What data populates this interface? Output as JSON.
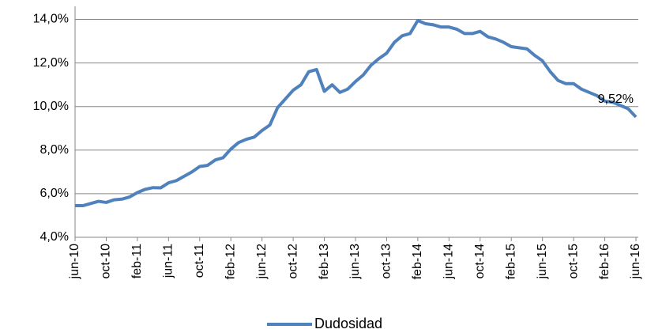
{
  "chart_data": {
    "type": "line",
    "categories": [
      "jun-10",
      null,
      null,
      null,
      "oct-10",
      null,
      null,
      null,
      "feb-11",
      null,
      null,
      null,
      "jun-11",
      null,
      null,
      null,
      "oct-11",
      null,
      null,
      null,
      "feb-12",
      null,
      null,
      null,
      "jun-12",
      null,
      null,
      null,
      "oct-12",
      null,
      null,
      null,
      "feb-13",
      null,
      null,
      null,
      "jun-13",
      null,
      null,
      null,
      "oct-13",
      null,
      null,
      null,
      "feb-14",
      null,
      null,
      null,
      "jun-14",
      null,
      null,
      null,
      "oct-14",
      null,
      null,
      null,
      "feb-15",
      null,
      null,
      null,
      "jun-15",
      null,
      null,
      null,
      "oct-15",
      null,
      null,
      null,
      "feb-16",
      null,
      null,
      null,
      "jun-16"
    ],
    "series": [
      {
        "name": "Dudosidad",
        "color": "#4f81bd",
        "values": [
          5.45,
          5.45,
          5.55,
          5.65,
          5.6,
          5.72,
          5.75,
          5.85,
          6.05,
          6.2,
          6.28,
          6.27,
          6.5,
          6.6,
          6.8,
          7.0,
          7.25,
          7.3,
          7.55,
          7.65,
          8.05,
          8.35,
          8.5,
          8.6,
          8.9,
          9.15,
          9.95,
          10.35,
          10.75,
          11.0,
          11.6,
          11.7,
          10.7,
          11.0,
          10.65,
          10.8,
          11.15,
          11.45,
          11.9,
          12.2,
          12.45,
          12.95,
          13.25,
          13.35,
          13.95,
          13.8,
          13.75,
          13.65,
          13.65,
          13.55,
          13.35,
          13.35,
          13.45,
          13.2,
          13.1,
          12.95,
          12.75,
          12.7,
          12.65,
          12.35,
          12.1,
          11.6,
          11.2,
          11.05,
          11.05,
          10.8,
          10.65,
          10.5,
          10.25,
          10.2,
          10.05,
          9.9,
          9.52
        ],
        "value_labels": [
          null,
          null,
          null,
          null,
          null,
          null,
          null,
          null,
          null,
          null,
          null,
          null,
          null,
          null,
          null,
          null,
          null,
          null,
          null,
          null,
          null,
          null,
          null,
          null,
          null,
          null,
          null,
          null,
          null,
          null,
          null,
          null,
          null,
          null,
          null,
          null,
          null,
          null,
          null,
          null,
          null,
          null,
          null,
          null,
          null,
          null,
          null,
          null,
          null,
          null,
          null,
          null,
          null,
          null,
          null,
          null,
          null,
          null,
          null,
          null,
          null,
          null,
          null,
          null,
          null,
          null,
          null,
          null,
          null,
          null,
          null,
          null,
          "9,52%"
        ]
      }
    ],
    "ylim": [
      4,
      14.6
    ],
    "yticks": [
      {
        "value": 4,
        "label": "4,0%"
      },
      {
        "value": 6,
        "label": "6,0%"
      },
      {
        "value": 8,
        "label": "8,0%"
      },
      {
        "value": 10,
        "label": "10,0%"
      },
      {
        "value": 12,
        "label": "12,0%"
      },
      {
        "value": 14,
        "label": "14,0%"
      }
    ],
    "grid": true,
    "legend": "bottom"
  }
}
